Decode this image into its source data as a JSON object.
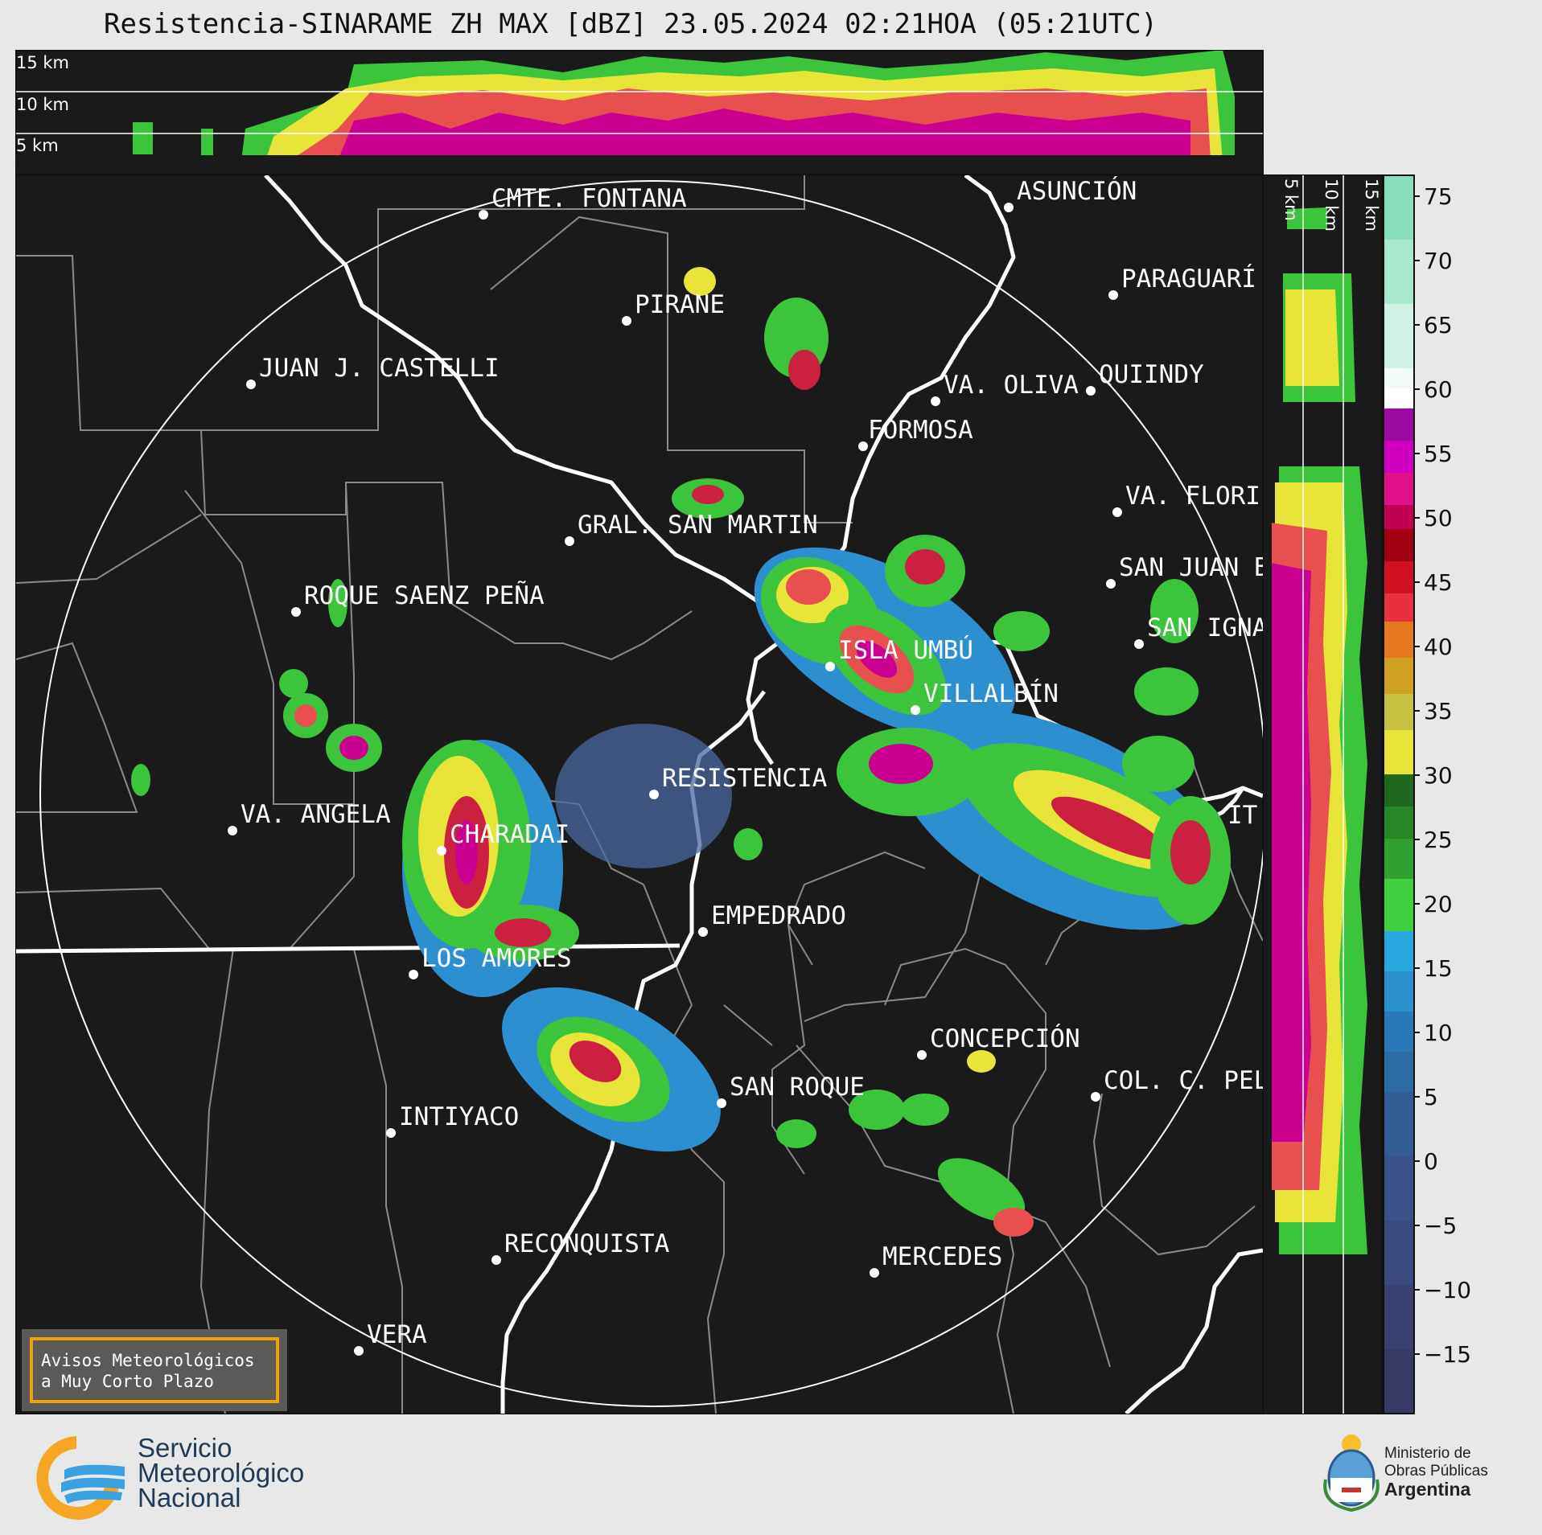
{
  "title": "Resistencia-SINARAME ZH MAX [dBZ] 23.05.2024 02:21HOA (05:21UTC)",
  "top_panel_labels": [
    "15 km",
    "10 km",
    "5 km"
  ],
  "side_panel_labels": [
    "5 km",
    "10 km",
    "15 km"
  ],
  "colorbar": {
    "ticks": [
      "75",
      "70",
      "65",
      "60",
      "55",
      "50",
      "45",
      "40",
      "35",
      "30",
      "25",
      "20",
      "15",
      "10",
      "5",
      "0",
      "−5",
      "−10",
      "−15"
    ]
  },
  "cities": [
    {
      "name": "CMTE. FONTANA"
    },
    {
      "name": "ASUNCIÓN"
    },
    {
      "name": "PIRANE"
    },
    {
      "name": "PARAGUARÍ"
    },
    {
      "name": "JUAN J. CASTELLI"
    },
    {
      "name": "VA. OLIVA"
    },
    {
      "name": "QUIINDY"
    },
    {
      "name": "FORMOSA"
    },
    {
      "name": "VA. FLORI"
    },
    {
      "name": "GRAL. SAN MARTIN"
    },
    {
      "name": "SAN JUAN B"
    },
    {
      "name": "ROQUE SAENZ PEÑA"
    },
    {
      "name": "SAN IGNA"
    },
    {
      "name": "ISLA UMBÚ"
    },
    {
      "name": "VILLALBÍN"
    },
    {
      "name": "RESISTENCIA"
    },
    {
      "name": "VA. ANGELA"
    },
    {
      "name": "CHARADAI"
    },
    {
      "name": "IT"
    },
    {
      "name": "EMPEDRADO"
    },
    {
      "name": "LOS AMORES"
    },
    {
      "name": "CONCEPCIÓN"
    },
    {
      "name": "SAN ROQUE"
    },
    {
      "name": "COL. C. PEL"
    },
    {
      "name": "INTIYACO"
    },
    {
      "name": "RECONQUISTA"
    },
    {
      "name": "MERCEDES"
    },
    {
      "name": "VERA"
    }
  ],
  "avisos": {
    "line1": "Avisos Meteorológicos",
    "line2": "a Muy Corto Plazo"
  },
  "smn": {
    "line1": "Servicio",
    "line2": "Meteorológico",
    "line3": "Nacional"
  },
  "ministerio": {
    "line1": "Ministerio de",
    "line2": "Obras Públicas",
    "line3": "Argentina"
  },
  "colors": {
    "background": "#1a1a1a",
    "border_white": "#ffffff",
    "admin_gray": "#8a8a8a",
    "brand_orange": "#f5a000"
  }
}
